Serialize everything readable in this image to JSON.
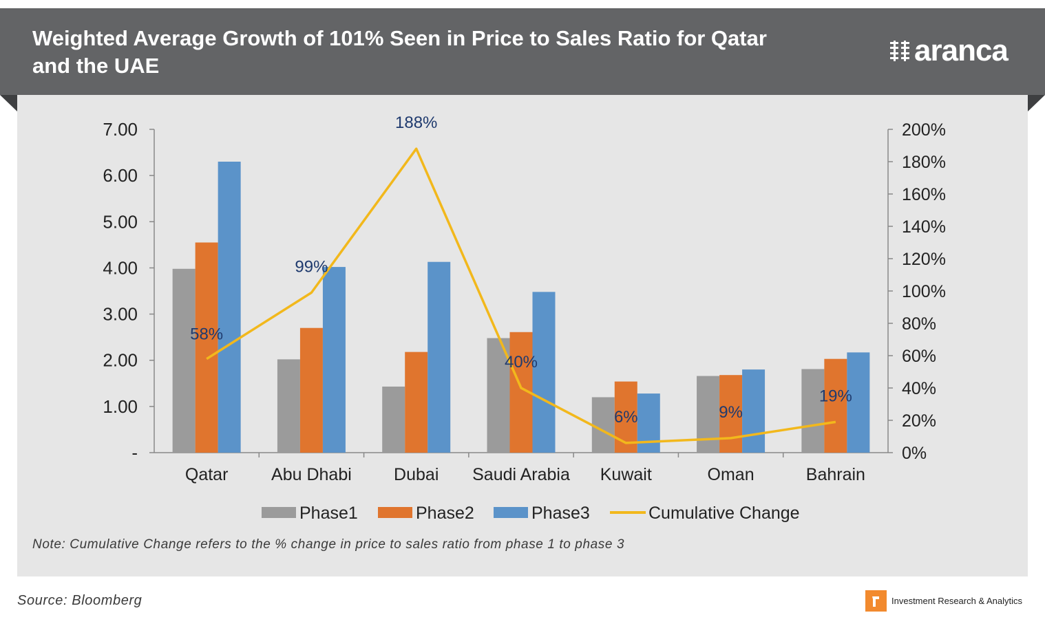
{
  "header": {
    "title": "Weighted Average Growth of 101% Seen in Price to Sales Ratio for Qatar and the UAE",
    "brand": "aranca"
  },
  "note": "Note: Cumulative Change refers to the % change in price to sales ratio from phase 1 to phase 3",
  "source": "Source: Bloomberg",
  "footer": {
    "tagline": "Investment Research & Analytics"
  },
  "colors": {
    "header_bg": "#636466",
    "panel_bg": "#e6e6e6",
    "phase1": "#9b9b9b",
    "phase2": "#e0752e",
    "phase3": "#5b93c9",
    "cumulative": "#f2b81c",
    "label": "#1f3a6e",
    "brand_accent": "#f28a2e"
  },
  "chart_data": {
    "type": "bar",
    "categories": [
      "Qatar",
      "Abu Dhabi",
      "Dubai",
      "Saudi Arabia",
      "Kuwait",
      "Oman",
      "Bahrain"
    ],
    "series": [
      {
        "name": "Phase1",
        "axis": "left",
        "type": "bar",
        "values": [
          3.98,
          2.02,
          1.43,
          2.48,
          1.2,
          1.66,
          1.81
        ]
      },
      {
        "name": "Phase2",
        "axis": "left",
        "type": "bar",
        "values": [
          4.55,
          2.7,
          2.18,
          2.61,
          1.54,
          1.68,
          2.03
        ]
      },
      {
        "name": "Phase3",
        "axis": "left",
        "type": "bar",
        "values": [
          6.3,
          4.02,
          4.13,
          3.48,
          1.28,
          1.8,
          2.17
        ]
      },
      {
        "name": "Cumulative Change",
        "axis": "right",
        "type": "line",
        "values": [
          58,
          99,
          188,
          40,
          6,
          9,
          19
        ],
        "data_labels": [
          "58%",
          "99%",
          "188%",
          "40%",
          "6%",
          "9%",
          "19%"
        ]
      }
    ],
    "y_left": {
      "ylim": [
        0,
        7
      ],
      "ticks": [
        0,
        1,
        2,
        3,
        4,
        5,
        6,
        7
      ],
      "tick_labels": [
        "-",
        "1.00",
        "2.00",
        "3.00",
        "4.00",
        "5.00",
        "6.00",
        "7.00"
      ]
    },
    "y_right": {
      "ylim": [
        0,
        200
      ],
      "ticks": [
        0,
        20,
        40,
        60,
        80,
        100,
        120,
        140,
        160,
        180,
        200
      ],
      "tick_labels": [
        "0%",
        "20%",
        "40%",
        "60%",
        "80%",
        "100%",
        "120%",
        "140%",
        "160%",
        "180%",
        "200%"
      ]
    },
    "legend": [
      "Phase1",
      "Phase2",
      "Phase3",
      "Cumulative Change"
    ],
    "legend_position": "bottom",
    "grid": false
  }
}
